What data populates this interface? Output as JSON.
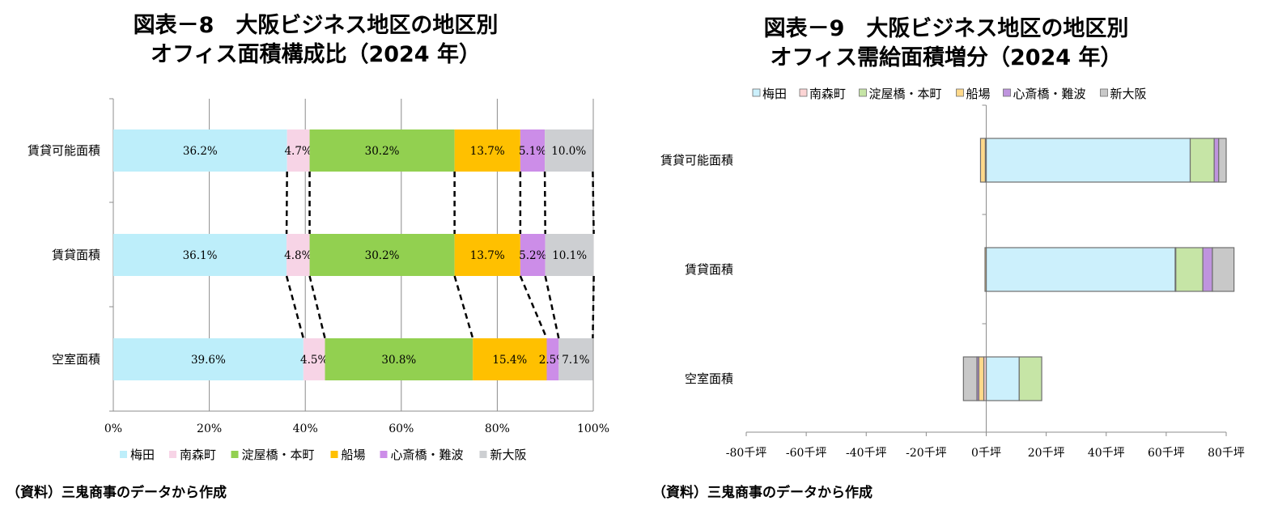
{
  "chart_data": [
    {
      "type": "bar",
      "orientation": "horizontal",
      "stacked": "percent",
      "title_line1": "図表－8　大阪ビジネス地区の地区別",
      "title_line2": "オフィス面積構成比（2024 年）",
      "categories": [
        "賃貸可能面積",
        "賃貸面積",
        "空室面積"
      ],
      "x_ticks": [
        "0%",
        "20%",
        "40%",
        "60%",
        "80%",
        "100%"
      ],
      "xlim": [
        0,
        100
      ],
      "grid": true,
      "legend_position": "bottom",
      "series": [
        {
          "name": "梅田",
          "color": "#bdeefa",
          "values": [
            36.2,
            36.1,
            39.6
          ],
          "labels": [
            "36.2%",
            "36.1%",
            "39.6%"
          ]
        },
        {
          "name": "南森町",
          "color": "#f7d4e6",
          "values": [
            4.7,
            4.8,
            4.5
          ],
          "labels": [
            "4.7%",
            "4.8%",
            "4.5%"
          ]
        },
        {
          "name": "淀屋橋・本町",
          "color": "#92d050",
          "values": [
            30.2,
            30.2,
            30.8
          ],
          "labels": [
            "30.2%",
            "30.2%",
            "30.8%"
          ]
        },
        {
          "name": "船場",
          "color": "#ffc000",
          "values": [
            13.7,
            13.7,
            15.4
          ],
          "labels": [
            "13.7%",
            "13.7%",
            "15.4%"
          ]
        },
        {
          "name": "心斎橋・難波",
          "color": "#cc8de8",
          "values": [
            5.1,
            5.2,
            2.5
          ],
          "labels": [
            "5.1%",
            "5.2%",
            "2.5%"
          ]
        },
        {
          "name": "新大阪",
          "color": "#cdcfd2",
          "values": [
            10.0,
            10.1,
            7.1
          ],
          "labels": [
            "10.0%",
            "10.1%",
            "7.1%"
          ]
        }
      ],
      "source": "（資料）三鬼商事のデータから作成"
    },
    {
      "type": "bar",
      "orientation": "horizontal",
      "stacked": "diverging",
      "title_line1": "図表－9　大阪ビジネス地区の地区別",
      "title_line2": "オフィス需給面積増分（2024 年）",
      "categories": [
        "賃貸可能面積",
        "賃貸面積",
        "空室面積"
      ],
      "unit": "千坪",
      "x_ticks": [
        "-80千坪",
        "-60千坪",
        "-40千坪",
        "-20千坪",
        "0千坪",
        "20千坪",
        "40千坪",
        "60千坪",
        "80千坪"
      ],
      "xlim": [
        -80,
        80
      ],
      "grid": false,
      "legend_position": "top",
      "series": [
        {
          "name": "梅田",
          "color": "#ccf0fc",
          "values": [
            68,
            63,
            11
          ]
        },
        {
          "name": "南森町",
          "color": "#fcd4d4",
          "values": [
            -0.3,
            0.2,
            -0.8
          ]
        },
        {
          "name": "淀屋橋・本町",
          "color": "#c6e5a6",
          "values": [
            8,
            9,
            7.5
          ]
        },
        {
          "name": "船場",
          "color": "#ffd98a",
          "values": [
            -1.6,
            -0.4,
            -1.7
          ]
        },
        {
          "name": "心斎橋・難波",
          "color": "#bf94de",
          "values": [
            1.5,
            3.2,
            -0.6
          ]
        },
        {
          "name": "新大阪",
          "color": "#c8c8c8",
          "values": [
            2.5,
            7.2,
            -4.5
          ]
        }
      ],
      "source": "（資料）三鬼商事のデータから作成"
    }
  ]
}
